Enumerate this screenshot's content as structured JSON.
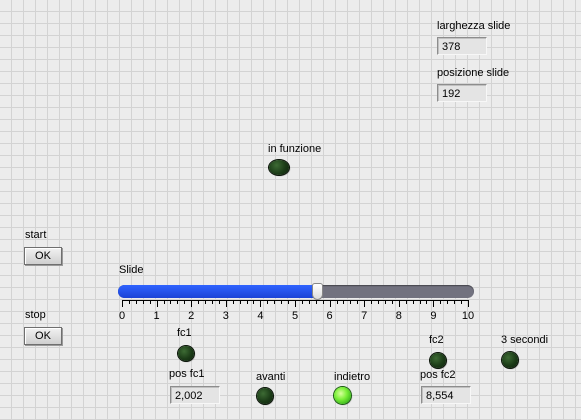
{
  "indicators": {
    "larghezza_slide": {
      "label": "larghezza slide",
      "value": "378"
    },
    "posizione_slide": {
      "label": "posizione slide",
      "value": "192"
    },
    "pos_fc1": {
      "label": "pos fc1",
      "value": "2,002"
    },
    "pos_fc2": {
      "label": "pos fc2",
      "value": "8,554"
    }
  },
  "buttons": {
    "start": {
      "label": "start",
      "text": "OK"
    },
    "stop": {
      "label": "stop",
      "text": "OK"
    }
  },
  "leds": {
    "in_funzione": {
      "label": "in funzione",
      "on": false
    },
    "fc1": {
      "label": "fc1",
      "on": false
    },
    "fc2": {
      "label": "fc2",
      "on": false
    },
    "tre_secondi": {
      "label": "3 secondi",
      "on": false
    },
    "avanti": {
      "label": "avanti",
      "on": false
    },
    "indietro": {
      "label": "indietro",
      "on": true
    }
  },
  "slide": {
    "label": "Slide",
    "min": 0,
    "max": 10,
    "value": 5.65,
    "tick_labels": [
      "0",
      "1",
      "2",
      "3",
      "4",
      "5",
      "6",
      "7",
      "8",
      "9",
      "10"
    ],
    "fill_color": "#1b43d6",
    "track_color": "#72727f"
  }
}
